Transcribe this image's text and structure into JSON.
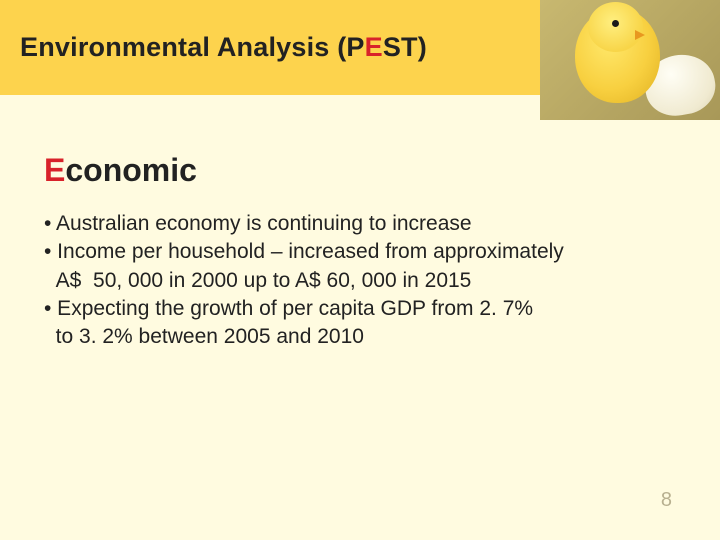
{
  "header": {
    "title_pre": "Environmental Analysis (P",
    "title_accent": "E",
    "title_post": "ST)"
  },
  "section": {
    "title_accent": "E",
    "title_rest": "conomic"
  },
  "bullets": {
    "lines": [
      "• Australian economy is continuing to increase",
      "• Income per household – increased from approximately",
      "  A$  50, 000 in 2000 up to A$ 60, 000 in 2015",
      "• Expecting the growth of per capita GDP from 2. 7%",
      "  to 3. 2% between 2005 and 2010"
    ]
  },
  "page_number": "8",
  "colors": {
    "header_bg": "#fdd34d",
    "slide_bg": "#fffbe0",
    "accent": "#d8222a",
    "text": "#222222",
    "page_num": "#b8b090"
  }
}
